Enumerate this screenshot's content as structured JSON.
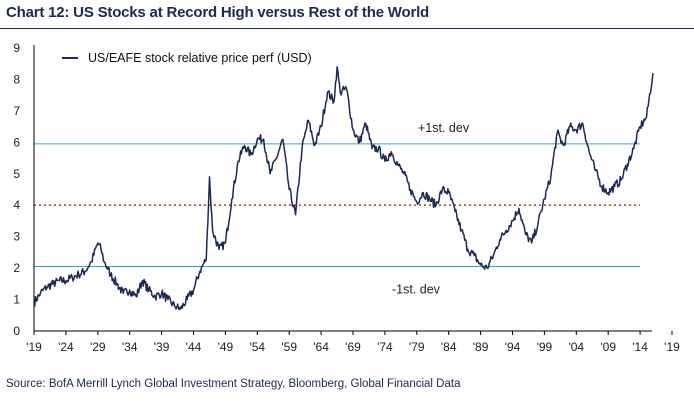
{
  "title": "Chart 12: US Stocks at Record High versus Rest of the World",
  "source": "Source: BofA Merrill Lynch Global Investment Strategy, Bloomberg, Global Financial Data",
  "colors": {
    "series": "#1b2a55",
    "band": "#3aa6c9",
    "mean": "#a0522d",
    "title": "#1b2a55"
  },
  "chart_data": {
    "type": "line",
    "title": "Chart 12: US Stocks at Record High versus Rest of the World",
    "xlabel": "",
    "ylabel": "",
    "xlim": [
      1919,
      2019
    ],
    "ylim": [
      0,
      9
    ],
    "x_ticks": [
      "'19",
      "'24",
      "'29",
      "'34",
      "'39",
      "'44",
      "'49",
      "'54",
      "'59",
      "'64",
      "'69",
      "'74",
      "'79",
      "'84",
      "'89",
      "'94",
      "'99",
      "'04",
      "'09",
      "'14",
      "'19"
    ],
    "x_tick_values": [
      1919,
      1924,
      1929,
      1934,
      1939,
      1944,
      1949,
      1954,
      1959,
      1964,
      1969,
      1974,
      1979,
      1984,
      1989,
      1994,
      1999,
      2004,
      2009,
      2014,
      2019
    ],
    "y_ticks": [
      "0",
      "1",
      "2",
      "3",
      "4",
      "5",
      "6",
      "7",
      "8",
      "9"
    ],
    "y_tick_values": [
      0,
      1,
      2,
      3,
      4,
      5,
      6,
      7,
      8,
      9
    ],
    "grid": false,
    "legend": "top-left",
    "series": [
      {
        "name": "US/EAFE stock relative price perf (USD)",
        "x": [
          1919,
          1920,
          1921,
          1922,
          1923,
          1924,
          1925,
          1926,
          1927,
          1928,
          1929,
          1929.5,
          1930,
          1931,
          1932,
          1933,
          1934,
          1935,
          1936,
          1937,
          1938,
          1939,
          1940,
          1941,
          1942,
          1943,
          1944,
          1945,
          1946,
          1946.5,
          1947,
          1948,
          1949,
          1950,
          1951,
          1952,
          1953,
          1954,
          1955,
          1956,
          1957,
          1958,
          1959,
          1960,
          1961,
          1962,
          1963,
          1964,
          1965,
          1966,
          1966.5,
          1967,
          1968,
          1969,
          1970,
          1971,
          1972,
          1973,
          1974,
          1975,
          1976,
          1977,
          1978,
          1979,
          1980,
          1981,
          1982,
          1983,
          1984,
          1985,
          1986,
          1987,
          1988,
          1989,
          1990,
          1991,
          1992,
          1993,
          1994,
          1995,
          1996,
          1997,
          1998,
          1999,
          2000,
          2001,
          2002,
          2003,
          2004,
          2005,
          2006,
          2007,
          2008,
          2009,
          2010,
          2011,
          2012,
          2013,
          2014,
          2015,
          2016
        ],
        "values": [
          0.9,
          1.2,
          1.4,
          1.5,
          1.6,
          1.6,
          1.7,
          1.8,
          1.9,
          2.2,
          2.8,
          2.6,
          2.2,
          1.8,
          1.5,
          1.2,
          1.3,
          1.1,
          1.6,
          1.3,
          1.1,
          1.2,
          1.0,
          0.8,
          0.7,
          1.0,
          1.3,
          1.9,
          2.3,
          4.9,
          3.2,
          2.6,
          2.8,
          4.2,
          5.4,
          5.9,
          5.6,
          6.1,
          6.1,
          5.0,
          5.5,
          6.1,
          4.5,
          3.7,
          5.8,
          6.7,
          5.9,
          6.5,
          7.6,
          7.3,
          8.4,
          7.6,
          7.7,
          6.4,
          6.0,
          6.6,
          5.8,
          5.8,
          5.4,
          5.7,
          5.3,
          5.0,
          4.5,
          4.1,
          4.4,
          4.2,
          4.0,
          4.5,
          4.4,
          3.8,
          3.2,
          2.6,
          2.4,
          2.1,
          2.0,
          2.4,
          2.9,
          3.2,
          3.5,
          3.9,
          3.1,
          2.8,
          3.4,
          4.2,
          4.9,
          6.3,
          5.9,
          6.5,
          6.4,
          6.6,
          5.7,
          5.1,
          4.6,
          4.4,
          4.6,
          4.8,
          5.3,
          5.8,
          6.5,
          6.8,
          8.2
        ]
      }
    ],
    "reference_lines": [
      {
        "y": 5.95,
        "style": "solid",
        "label": "+1st. dev"
      },
      {
        "y": 4.0,
        "style": "dotted-dashed",
        "label": ""
      },
      {
        "y": 2.05,
        "style": "solid",
        "label": "-1st. dev"
      }
    ]
  }
}
